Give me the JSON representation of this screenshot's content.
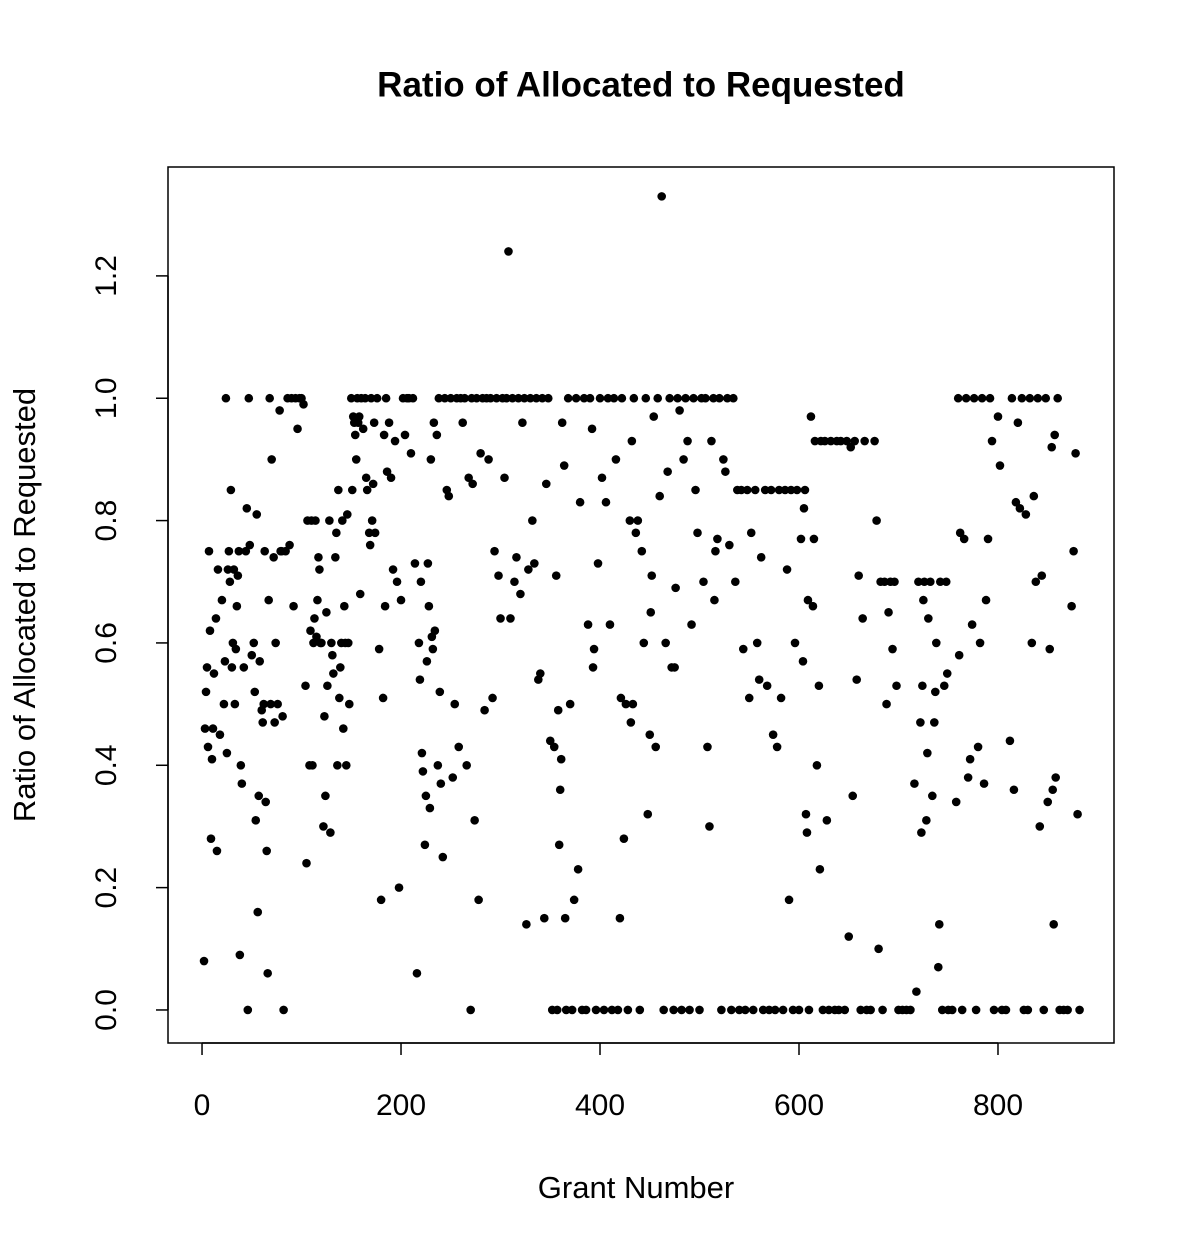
{
  "chart_data": {
    "type": "scatter",
    "title": "Ratio of Allocated to Requested",
    "x_label": "Grant Number",
    "y_label": "Ratio of Allocated to Requested",
    "color": "#000000",
    "xlim": [
      -34.2,
      916.6
    ],
    "ylim": [
      -0.054,
      1.378
    ],
    "xticks": [
      0,
      200,
      400,
      600,
      800
    ],
    "yticks": [
      {
        "value": 0,
        "label": "0.0"
      },
      0.2,
      0.4,
      0.6,
      0.8,
      {
        "value": 1,
        "label": "1.0"
      },
      1.2
    ],
    "x": [
      2,
      3,
      4,
      5,
      6,
      7,
      8,
      9,
      10,
      11,
      12,
      14,
      15,
      16,
      18,
      20,
      22,
      23,
      24,
      25,
      26,
      27,
      28,
      29,
      30,
      31,
      32,
      33,
      34,
      35,
      36,
      37,
      38,
      39,
      40,
      42,
      44,
      45,
      46,
      47,
      48,
      50,
      52,
      53,
      54,
      55,
      56,
      57,
      58,
      60,
      61,
      62,
      63,
      64,
      65,
      66,
      67,
      68,
      69,
      70,
      72,
      73,
      74,
      76,
      78,
      79,
      80,
      81,
      82,
      84,
      86,
      88,
      90,
      92,
      94,
      96,
      98,
      100,
      102,
      104,
      105,
      106,
      108,
      109,
      110,
      111,
      112,
      113,
      114,
      115,
      116,
      117,
      118,
      119,
      120,
      122,
      123,
      124,
      125,
      126,
      128,
      129,
      130,
      131,
      132,
      134,
      135,
      136,
      137,
      138,
      139,
      140,
      141,
      142,
      143,
      144,
      145,
      146,
      147,
      148,
      150,
      151,
      152,
      153,
      154,
      155,
      156,
      157,
      158,
      159,
      160,
      162,
      164,
      165,
      166,
      168,
      169,
      170,
      171,
      172,
      173,
      174,
      176,
      178,
      180,
      182,
      183,
      184,
      185,
      186,
      188,
      190,
      192,
      194,
      196,
      198,
      200,
      202,
      204,
      206,
      208,
      210,
      212,
      214,
      216,
      218,
      219,
      220,
      221,
      222,
      224,
      225,
      226,
      227,
      228,
      229,
      230,
      231,
      232,
      233,
      234,
      236,
      237,
      238,
      239,
      240,
      242,
      244,
      246,
      248,
      250,
      252,
      254,
      256,
      258,
      260,
      262,
      264,
      266,
      268,
      270,
      271,
      272,
      274,
      276,
      278,
      280,
      282,
      284,
      286,
      288,
      290,
      292,
      294,
      296,
      298,
      300,
      302,
      304,
      306,
      308,
      310,
      312,
      314,
      316,
      318,
      320,
      322,
      324,
      326,
      328,
      330,
      332,
      334,
      336,
      338,
      340,
      342,
      344,
      346,
      348,
      350,
      352,
      354,
      356,
      357,
      358,
      359,
      360,
      361,
      362,
      364,
      365,
      366,
      368,
      370,
      372,
      374,
      376,
      378,
      380,
      382,
      384,
      386,
      388,
      390,
      392,
      393,
      394,
      396,
      398,
      400,
      402,
      404,
      406,
      408,
      410,
      412,
      414,
      416,
      418,
      420,
      421,
      422,
      424,
      426,
      428,
      430,
      431,
      432,
      433,
      434,
      436,
      438,
      440,
      442,
      444,
      446,
      448,
      450,
      451,
      452,
      454,
      456,
      458,
      460,
      462,
      464,
      466,
      468,
      470,
      472,
      474,
      475,
      476,
      478,
      480,
      482,
      484,
      486,
      488,
      490,
      492,
      494,
      496,
      498,
      500,
      502,
      504,
      506,
      508,
      510,
      512,
      514,
      515,
      516,
      518,
      520,
      522,
      524,
      526,
      528,
      530,
      532,
      534,
      536,
      538,
      540,
      542,
      544,
      546,
      548,
      550,
      552,
      554,
      556,
      558,
      560,
      562,
      564,
      566,
      568,
      570,
      572,
      574,
      576,
      578,
      580,
      582,
      584,
      586,
      588,
      590,
      592,
      594,
      596,
      598,
      600,
      602,
      604,
      605,
      606,
      607,
      608,
      609,
      610,
      612,
      614,
      615,
      616,
      618,
      620,
      621,
      622,
      624,
      626,
      628,
      630,
      632,
      636,
      638,
      640,
      642,
      646,
      648,
      650,
      652,
      654,
      656,
      658,
      660,
      662,
      664,
      666,
      668,
      672,
      676,
      678,
      680,
      682,
      684,
      686,
      688,
      690,
      692,
      694,
      696,
      698,
      700,
      704,
      708,
      712,
      716,
      718,
      720,
      722,
      723,
      724,
      725,
      726,
      728,
      729,
      730,
      732,
      734,
      736,
      737,
      738,
      740,
      741,
      742,
      744,
      746,
      748,
      749,
      750,
      754,
      758,
      760,
      761,
      762,
      764,
      766,
      768,
      770,
      772,
      774,
      776,
      778,
      780,
      782,
      784,
      786,
      788,
      790,
      792,
      794,
      796,
      800,
      802,
      804,
      808,
      812,
      814,
      816,
      818,
      820,
      822,
      824,
      826,
      828,
      830,
      832,
      834,
      836,
      838,
      840,
      842,
      844,
      846,
      848,
      850,
      852,
      854,
      855,
      856,
      857,
      858,
      860,
      862,
      866,
      870,
      874,
      876,
      878,
      880,
      882
    ],
    "values": [
      0.08,
      0.46,
      0.52,
      0.56,
      0.43,
      0.75,
      0.62,
      0.28,
      0.41,
      0.46,
      0.55,
      0.64,
      0.26,
      0.72,
      0.45,
      0.67,
      0.5,
      0.57,
      1,
      0.42,
      0.72,
      0.75,
      0.7,
      0.85,
      0.56,
      0.6,
      0.72,
      0.5,
      0.59,
      0.66,
      0.71,
      0.75,
      0.09,
      0.4,
      0.37,
      0.56,
      0.75,
      0.82,
      0,
      1,
      0.76,
      0.58,
      0.6,
      0.52,
      0.31,
      0.81,
      0.16,
      0.35,
      0.57,
      0.49,
      0.47,
      0.5,
      0.75,
      0.34,
      0.26,
      0.06,
      0.67,
      1,
      0.5,
      0.9,
      0.74,
      0.47,
      0.6,
      0.5,
      0.98,
      0.75,
      0.75,
      0.48,
      0,
      0.75,
      1,
      0.76,
      1,
      0.66,
      1,
      0.95,
      1,
      1,
      0.99,
      0.53,
      0.24,
      0.8,
      0.4,
      0.62,
      0.8,
      0.4,
      0.6,
      0.64,
      0.8,
      0.61,
      0.67,
      0.74,
      0.72,
      0.6,
      0.6,
      0.3,
      0.48,
      0.35,
      0.65,
      0.53,
      0.8,
      0.29,
      0.6,
      0.58,
      0.55,
      0.74,
      0.78,
      0.4,
      0.85,
      0.51,
      0.56,
      0.6,
      0.8,
      0.46,
      0.66,
      0.6,
      0.4,
      0.81,
      0.6,
      0.5,
      1,
      0.85,
      0.97,
      0.96,
      0.94,
      0.9,
      1,
      0.96,
      0.97,
      0.68,
      1,
      0.95,
      1,
      0.87,
      0.85,
      0.78,
      0.76,
      1,
      0.8,
      0.86,
      0.96,
      0.78,
      1,
      0.59,
      0.18,
      0.51,
      0.94,
      0.66,
      1,
      0.88,
      0.96,
      0.87,
      0.72,
      0.93,
      0.7,
      0.2,
      0.67,
      1,
      0.94,
      1,
      1,
      0.91,
      1,
      0.73,
      0.06,
      0.6,
      0.54,
      0.7,
      0.42,
      0.39,
      0.27,
      0.35,
      0.57,
      0.73,
      0.66,
      0.33,
      0.9,
      0.61,
      0.59,
      0.96,
      0.62,
      0.94,
      0.4,
      1,
      0.52,
      0.37,
      0.25,
      1,
      0.85,
      0.84,
      1,
      0.38,
      0.5,
      1,
      0.43,
      1,
      0.96,
      1,
      0.4,
      0.87,
      0,
      1,
      0.86,
      0.31,
      1,
      0.18,
      0.91,
      1,
      0.49,
      1,
      0.9,
      1,
      0.51,
      0.75,
      1,
      0.71,
      0.64,
      1,
      0.87,
      1,
      1.24,
      0.64,
      1,
      0.7,
      0.74,
      1,
      0.68,
      0.96,
      1,
      0.14,
      0.72,
      1,
      0.8,
      0.73,
      1,
      0.54,
      0.55,
      1,
      0.15,
      0.86,
      1,
      0.44,
      0,
      0.43,
      0.71,
      0,
      0.49,
      0.27,
      0.36,
      0.41,
      0.96,
      0.89,
      0.15,
      0,
      1,
      0.5,
      0,
      0.18,
      1,
      0.23,
      0.83,
      0,
      1,
      0,
      0.63,
      1,
      0.95,
      0.56,
      0.59,
      0,
      0.73,
      1,
      0.87,
      0,
      0.83,
      1,
      0.63,
      0,
      1,
      0.9,
      0,
      0.15,
      0.51,
      1,
      0.28,
      0.5,
      0,
      0.8,
      0.47,
      0.93,
      0.5,
      1,
      0.78,
      0.8,
      0,
      0.75,
      0.6,
      1,
      0.32,
      0.45,
      0.65,
      0.71,
      0.97,
      0.43,
      1,
      0.84,
      1.33,
      0,
      0.6,
      0.88,
      1,
      0.56,
      0,
      0.56,
      0.69,
      1,
      0.98,
      0,
      0.9,
      1,
      0.93,
      0,
      0.63,
      1,
      0.85,
      0.78,
      0,
      1,
      0.7,
      1,
      0.43,
      0.3,
      0.93,
      1,
      0.67,
      0.75,
      0.77,
      1,
      0,
      0.9,
      0.88,
      1,
      0.76,
      0,
      1,
      0.7,
      0.85,
      0,
      0.85,
      0.59,
      0,
      0.85,
      0.51,
      0.78,
      0,
      0.85,
      0.6,
      0.54,
      0.74,
      0,
      0.85,
      0.53,
      0,
      0.85,
      0.45,
      0,
      0.43,
      0.85,
      0.51,
      0,
      0.85,
      0.72,
      0.18,
      0.85,
      0,
      0.6,
      0.85,
      0,
      0.77,
      0.57,
      0.82,
      0.85,
      0.32,
      0.29,
      0.67,
      0,
      0.97,
      0.66,
      0.77,
      0.93,
      0.4,
      0.53,
      0.23,
      0.93,
      0,
      0.93,
      0.31,
      0,
      0.93,
      0,
      0.93,
      0,
      0.93,
      0,
      0.93,
      0.12,
      0.92,
      0.35,
      0.93,
      0.54,
      0.71,
      0,
      0.64,
      0.93,
      0,
      0,
      0.93,
      0.8,
      0.1,
      0.7,
      0,
      0.7,
      0.5,
      0.65,
      0.7,
      0.59,
      0.7,
      0.53,
      0,
      0,
      0,
      0,
      0.37,
      0.03,
      0.7,
      0.47,
      0.29,
      0.53,
      0.67,
      0.7,
      0.31,
      0.42,
      0.64,
      0.7,
      0.35,
      0.47,
      0.52,
      0.6,
      0.07,
      0.14,
      0.7,
      0,
      0.53,
      0.7,
      0.55,
      0,
      0,
      0.34,
      1,
      0.58,
      0.78,
      0,
      0.77,
      1,
      0.38,
      0.41,
      0.63,
      1,
      0,
      0.43,
      0.6,
      1,
      0.37,
      0.67,
      0.77,
      1,
      0.93,
      0,
      0.97,
      0.89,
      0,
      0,
      0.44,
      1,
      0.36,
      0.83,
      0.96,
      0.82,
      1,
      0,
      0.81,
      0,
      1,
      0.6,
      0.84,
      0.7,
      1,
      0.3,
      0.71,
      0,
      1,
      0.34,
      0.59,
      0.92,
      0.36,
      0.14,
      0.94,
      0.38,
      1,
      0,
      0,
      0,
      0.66,
      0.75,
      0.91,
      0.32,
      0
    ]
  }
}
